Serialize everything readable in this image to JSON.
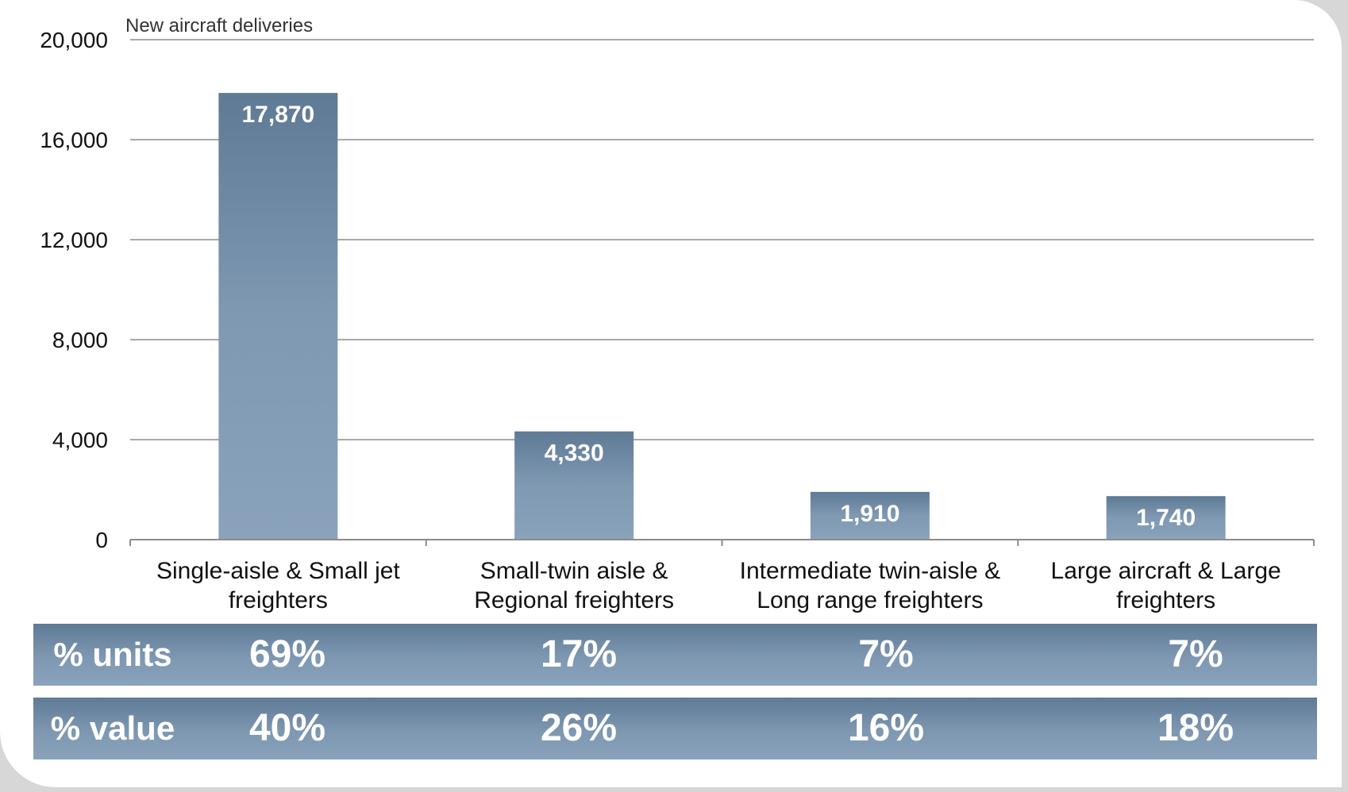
{
  "chart_data": {
    "type": "bar",
    "ylabel": "New aircraft deliveries",
    "categories": [
      [
        "Single-aisle & Small jet",
        "freighters"
      ],
      [
        "Small-twin aisle &",
        "Regional freighters"
      ],
      [
        "Intermediate twin-aisle &",
        "Long range freighters"
      ],
      [
        "Large aircraft & Large",
        "freighters"
      ]
    ],
    "values": [
      17870,
      4330,
      1910,
      1740
    ],
    "value_labels": [
      "17,870",
      "4,330",
      "1,910",
      "1,740"
    ],
    "ylim": [
      0,
      20000
    ],
    "yticks": [
      0,
      4000,
      8000,
      12000,
      16000,
      20000
    ],
    "ytick_labels": [
      "0",
      "4,000",
      "8,000",
      "12,000",
      "16,000",
      "20,000"
    ],
    "grid": true,
    "legend": "none",
    "bar_color_top": "#5f7a95",
    "bar_color_bottom": "#8aa2bb"
  },
  "table": {
    "rows": [
      {
        "label": "% units",
        "values": [
          "69%",
          "17%",
          "7%",
          "7%"
        ]
      },
      {
        "label": "% value",
        "values": [
          "40%",
          "26%",
          "16%",
          "18%"
        ]
      }
    ]
  }
}
